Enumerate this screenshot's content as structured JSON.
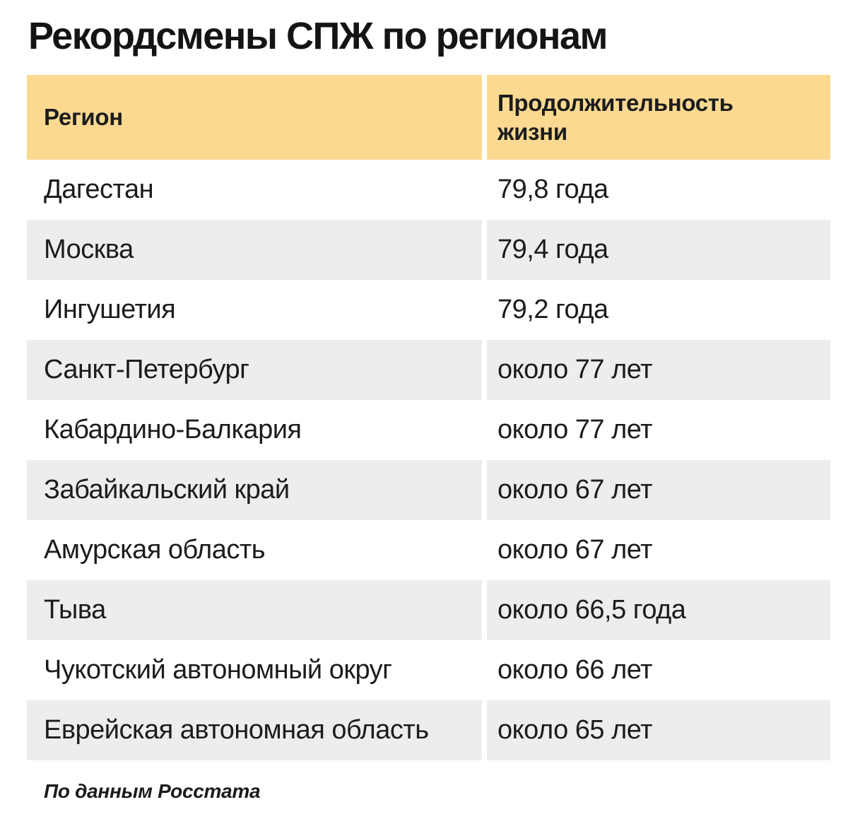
{
  "title": "Рекордсмены СПЖ по регионам",
  "source": "По данным Росстата",
  "colors": {
    "header_bg": "#FBD991",
    "row_alt_bg": "#EDEDED",
    "text": "#1C1C1C",
    "background": "#FFFFFF"
  },
  "chart_data": {
    "type": "table",
    "title": "Рекордсмены СПЖ по регионам",
    "columns": [
      "Регион",
      "Продолжительность жизни"
    ],
    "rows": [
      [
        "Дагестан",
        "79,8 года"
      ],
      [
        "Москва",
        "79,4 года"
      ],
      [
        "Ингушетия",
        "79,2 года"
      ],
      [
        "Санкт-Петербург",
        "около 77 лет"
      ],
      [
        "Кабардино-Балкария",
        "около 77 лет"
      ],
      [
        "Забайкальский край",
        "около 67 лет"
      ],
      [
        "Амурская область",
        "около 67 лет"
      ],
      [
        "Тыва",
        "около 66,5 года"
      ],
      [
        "Чукотский автономный округ",
        "около 66 лет"
      ],
      [
        "Еврейская автономная область",
        "около 65 лет"
      ]
    ],
    "source": "По данным Росстата",
    "layout": {
      "striped": true,
      "first_data_row_bg": "white",
      "header_lines_col2": 2
    }
  }
}
